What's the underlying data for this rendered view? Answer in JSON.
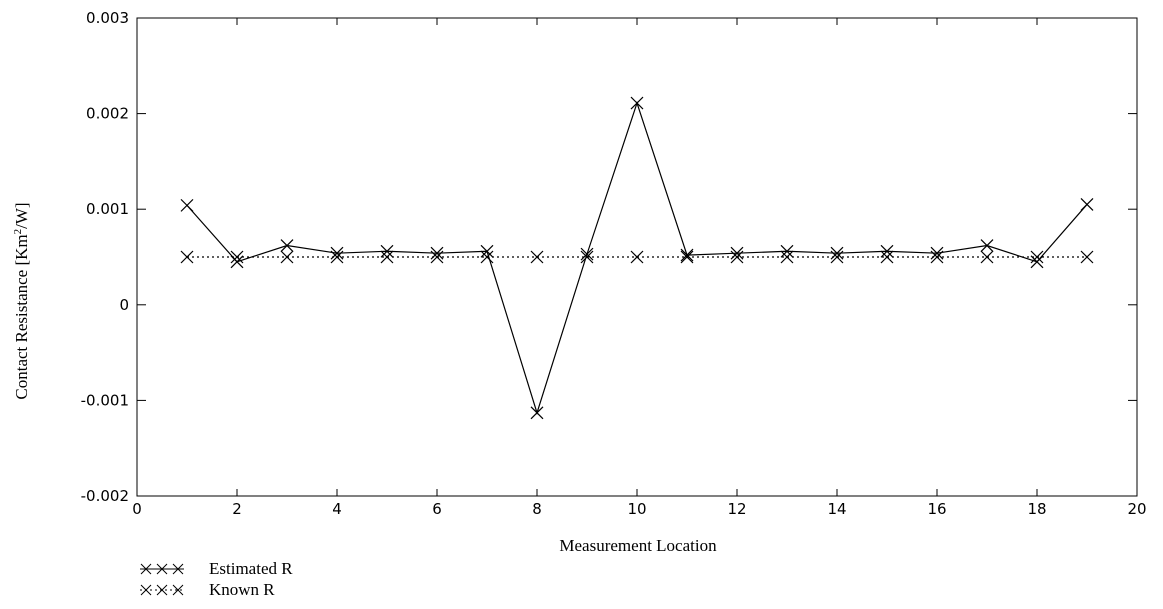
{
  "chart_data": {
    "type": "line",
    "xlabel": "Measurement Location",
    "ylabel_main": "Contact Resistance [Km",
    "ylabel_sup": "2",
    "ylabel_tail": "/W]",
    "xlim": [
      0,
      20
    ],
    "ylim": [
      -0.002,
      0.003
    ],
    "x_ticks": [
      0,
      2,
      4,
      6,
      8,
      10,
      12,
      14,
      16,
      18,
      20
    ],
    "y_ticks": [
      {
        "value": -0.002,
        "label": "-0.002"
      },
      {
        "value": -0.001,
        "label": "-0.001"
      },
      {
        "value": 0,
        "label": "0"
      },
      {
        "value": 0.001,
        "label": "0.001"
      },
      {
        "value": 0.002,
        "label": "0.002"
      },
      {
        "value": 0.003,
        "label": "0.003"
      }
    ],
    "grid": false,
    "legend_position": "bottom-left",
    "x": [
      1,
      2,
      3,
      4,
      5,
      6,
      7,
      8,
      9,
      10,
      11,
      12,
      13,
      14,
      15,
      16,
      17,
      18,
      19
    ],
    "series": [
      {
        "name": "Estimated R",
        "style": "solid",
        "values": [
          0.00104,
          0.00045,
          0.00062,
          0.00054,
          0.00056,
          0.00054,
          0.00056,
          -0.00113,
          0.00053,
          0.00211,
          0.00052,
          0.00054,
          0.00056,
          0.00054,
          0.00056,
          0.00054,
          0.00062,
          0.00045,
          0.00105
        ]
      },
      {
        "name": "Known R",
        "style": "dotted",
        "values": [
          0.0005,
          0.0005,
          0.0005,
          0.0005,
          0.0005,
          0.0005,
          0.0005,
          0.0005,
          0.0005,
          0.0005,
          0.0005,
          0.0005,
          0.0005,
          0.0005,
          0.0005,
          0.0005,
          0.0005,
          0.0005,
          0.0005
        ]
      }
    ],
    "colors": {
      "line": "#000000",
      "background": "#ffffff"
    }
  }
}
